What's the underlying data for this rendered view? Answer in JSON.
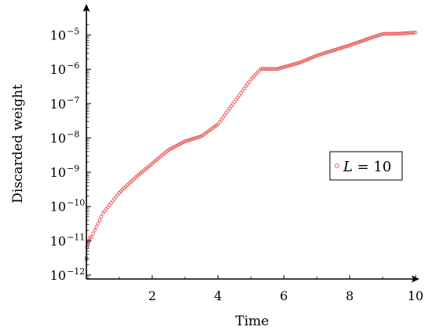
{
  "chart_data": {
    "type": "scatter",
    "xlabel": "Time",
    "ylabel": "Discarded weight",
    "xlim": [
      0,
      10
    ],
    "ylim_exponent": [
      -12.2,
      -4.6
    ],
    "y_scale": "log",
    "grid": false,
    "legend_position": "right-middle",
    "x_ticks": [
      {
        "value": 2,
        "label": "2"
      },
      {
        "value": 4,
        "label": "4"
      },
      {
        "value": 6,
        "label": "6"
      },
      {
        "value": 8,
        "label": "8"
      },
      {
        "value": 10,
        "label": "10"
      }
    ],
    "y_ticks": [
      {
        "exponent": -12,
        "base": "10",
        "exp_text": "−12"
      },
      {
        "exponent": -11,
        "base": "10",
        "exp_text": "−11"
      },
      {
        "exponent": -10,
        "base": "10",
        "exp_text": "−10"
      },
      {
        "exponent": -9,
        "base": "10",
        "exp_text": "−9"
      },
      {
        "exponent": -8,
        "base": "10",
        "exp_text": "−8"
      },
      {
        "exponent": -7,
        "base": "10",
        "exp_text": "−7"
      },
      {
        "exponent": -6,
        "base": "10",
        "exp_text": "−6"
      },
      {
        "exponent": -5,
        "base": "10",
        "exp_text": "−5"
      }
    ],
    "series": [
      {
        "name": "L = 10",
        "legend_var": "L",
        "legend_rest": " = 10",
        "color": "#e8585a",
        "marker": "open-circle",
        "anchors": [
          [
            0.0,
            -11.5
          ],
          [
            0.05,
            -11.1
          ],
          [
            0.2,
            -10.8
          ],
          [
            0.5,
            -10.2
          ],
          [
            1.0,
            -9.6
          ],
          [
            1.5,
            -9.15
          ],
          [
            2.0,
            -8.75
          ],
          [
            2.5,
            -8.35
          ],
          [
            3.0,
            -8.1
          ],
          [
            3.5,
            -7.95
          ],
          [
            4.0,
            -7.6
          ],
          [
            4.5,
            -6.95
          ],
          [
            5.0,
            -6.3
          ],
          [
            5.3,
            -5.99
          ],
          [
            5.8,
            -5.99
          ],
          [
            6.5,
            -5.8
          ],
          [
            7.0,
            -5.6
          ],
          [
            8.0,
            -5.3
          ],
          [
            8.6,
            -5.1
          ],
          [
            9.0,
            -4.97
          ],
          [
            9.5,
            -4.96
          ],
          [
            10.0,
            -4.93
          ]
        ],
        "step": 0.05
      }
    ]
  }
}
